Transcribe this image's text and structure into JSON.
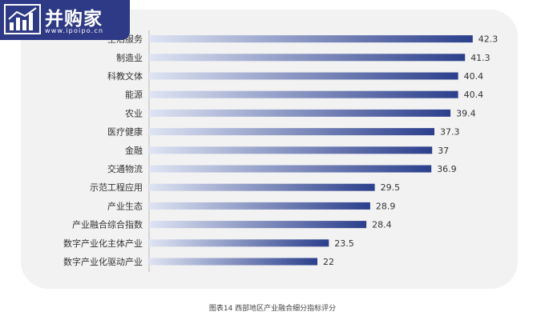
{
  "logo": {
    "title": "并购家",
    "url": "www.ipoipo.cn",
    "icon": "bar-chart-logo-icon",
    "color": "#2f3a86"
  },
  "caption": "图表14 西部地区产业融合细分指标评分",
  "chart_data": {
    "type": "bar",
    "orientation": "horizontal",
    "title": "",
    "xlabel": "",
    "ylabel": "",
    "xlim": [
      0,
      44
    ],
    "grid": false,
    "legend": "none",
    "bar_color_start": "#2b3f8c",
    "bar_color_end": "#dfe4f3",
    "categories": [
      "生活服务",
      "制造业",
      "科教文体",
      "能源",
      "农业",
      "医疗健康",
      "金融",
      "交通物流",
      "示范工程应用",
      "产业生态",
      "产业融合综合指数",
      "数字产业化主体产业",
      "数字产业化驱动产业"
    ],
    "values": [
      42.3,
      41.3,
      40.4,
      40.4,
      39.4,
      37.3,
      37,
      36.9,
      29.5,
      28.9,
      28.4,
      23.5,
      22
    ]
  }
}
